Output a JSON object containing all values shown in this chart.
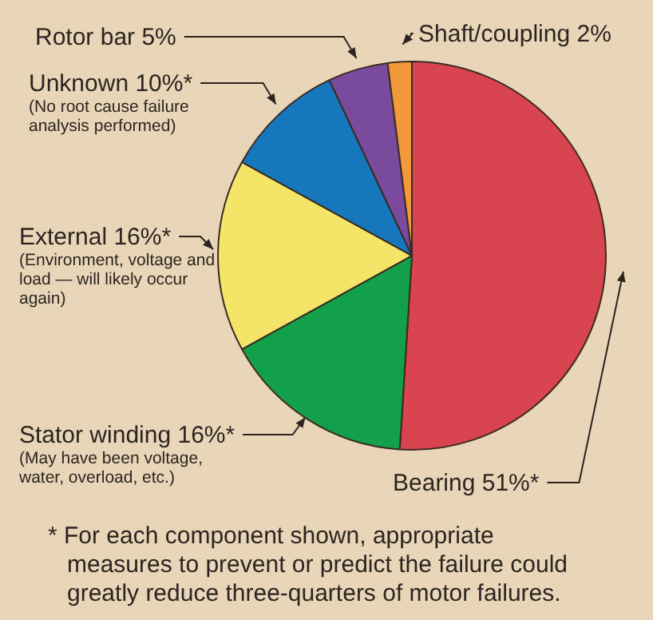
{
  "chart_data": {
    "type": "pie",
    "categories": [
      "Bearing",
      "Stator winding",
      "External",
      "Unknown",
      "Rotor bar",
      "Shaft/coupling"
    ],
    "values": [
      51,
      16,
      16,
      10,
      5,
      2
    ],
    "value_labels": [
      "51%*",
      "16%*",
      "16%*",
      "10%*",
      "5%",
      "2%"
    ],
    "colors": [
      "#d8444f",
      "#13a04a",
      "#f4e569",
      "#1677bd",
      "#7a4b9d",
      "#f2993a"
    ],
    "legend": false,
    "annotations": [
      {
        "text": "(Environment, voltage and load — will likely occur again)",
        "x": "External"
      },
      {
        "text": "(No root cause failure analysis performed)",
        "x": "Unknown"
      },
      {
        "text": "(May have been voltage, water, overload, etc.)",
        "x": "Stator winding"
      },
      "* For each component shown, appropriate measures to prevent or predict the failure could greatly reduce three-quarters of motor failures."
    ]
  }
}
